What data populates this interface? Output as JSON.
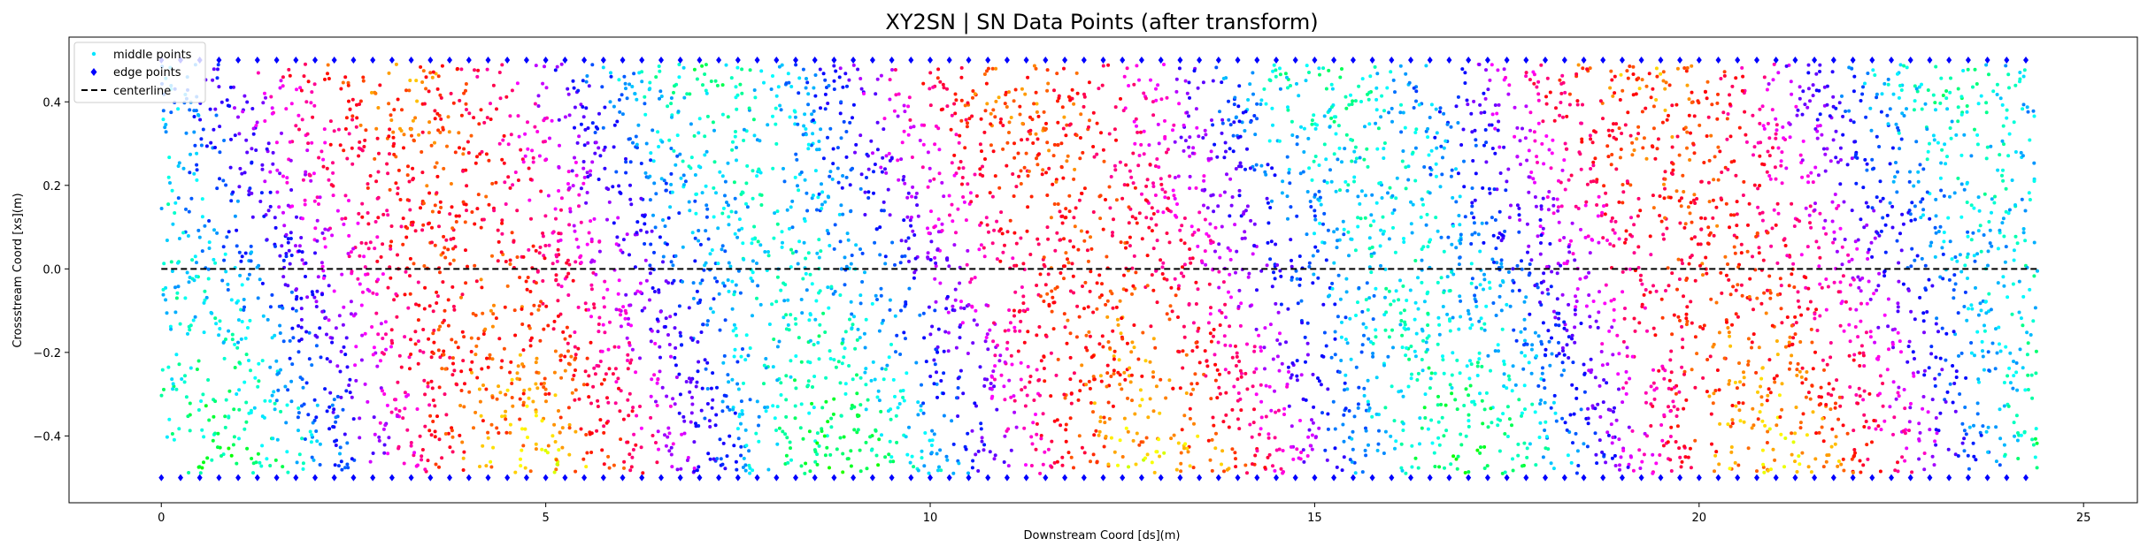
{
  "chart_data": {
    "type": "scatter",
    "title": "XY2SN | SN Data Points (after transform)",
    "xlabel": "Downstream Coord [ds](m)",
    "ylabel": "Crossstream Coord [xs](m)",
    "xlim": [
      -1.2,
      25.7
    ],
    "ylim": [
      -0.56,
      0.555
    ],
    "xticks": [
      0,
      5,
      10,
      15,
      20,
      25
    ],
    "yticks": [
      -0.4,
      -0.2,
      0.0,
      0.2,
      0.4
    ],
    "xtick_labels": [
      "0",
      "5",
      "10",
      "15",
      "20",
      "25"
    ],
    "ytick_labels": [
      "−0.4",
      "−0.2",
      "0.0",
      "0.2",
      "0.4"
    ],
    "grid": false,
    "legend_position": "top-left",
    "colormap": "hsv",
    "series": [
      {
        "name": "middle points",
        "marker": "dot",
        "colored_by": "hsv colormap along downstream coordinate",
        "x_range": [
          0,
          24.4
        ],
        "y_range": [
          -0.5,
          0.5
        ]
      },
      {
        "name": "edge points",
        "marker": "diamond",
        "color": "#0000ff",
        "x": [
          0,
          24.4
        ],
        "y": [
          -0.5,
          0.5
        ],
        "spacing": 0.25
      },
      {
        "name": "centerline",
        "line_style": "dashed",
        "color": "#000000",
        "x": [
          0,
          24.4
        ],
        "y": [
          0,
          0
        ]
      }
    ]
  }
}
